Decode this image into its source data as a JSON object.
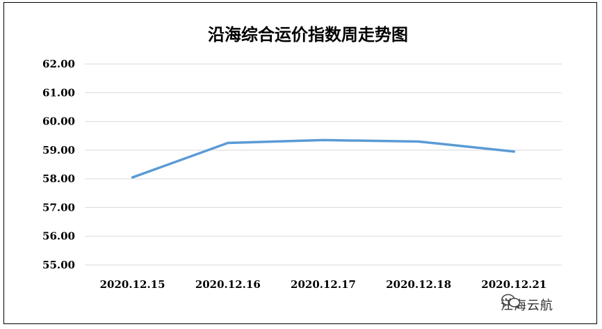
{
  "chart_data": {
    "type": "line",
    "title": "沿海综合运价指数周走势图",
    "xlabel": "",
    "ylabel": "",
    "categories": [
      "2020.12.15",
      "2020.12.16",
      "2020.12.17",
      "2020.12.18",
      "2020.12.21"
    ],
    "series": [
      {
        "values": [
          58.05,
          59.25,
          59.35,
          59.3,
          58.95
        ]
      }
    ],
    "ylim": [
      55.0,
      62.0
    ],
    "yticks": [
      "55.00",
      "56.00",
      "57.00",
      "58.00",
      "59.00",
      "60.00",
      "61.00",
      "62.00"
    ],
    "grid": true,
    "legend": "none",
    "line_color": "#5b9bd5",
    "grid_color": "#d9d9d9"
  },
  "watermark": {
    "text": "江海云航",
    "icon": "wechat-icon"
  }
}
